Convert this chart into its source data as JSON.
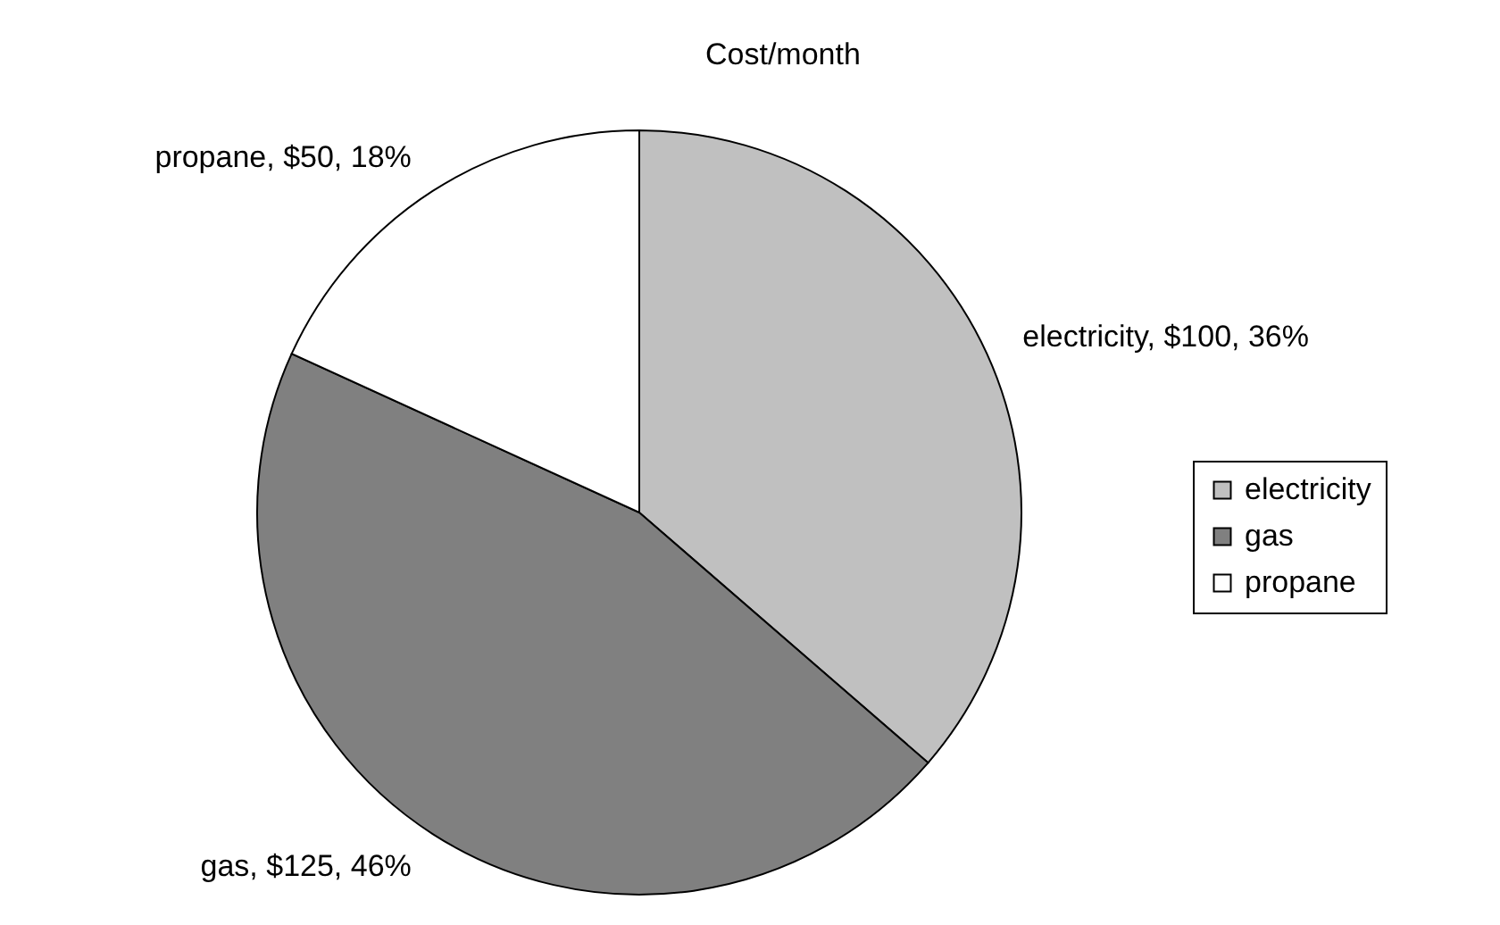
{
  "chart_data": {
    "type": "pie",
    "title": "Cost/month",
    "categories": [
      "electricity",
      "gas",
      "propane"
    ],
    "values": [
      100,
      125,
      50
    ],
    "colors": [
      "#c0c0c0",
      "#808080",
      "#ffffff"
    ],
    "value_labels": [
      "electricity, $100, 36%",
      "gas, $125, 46%",
      "propane, $50, 18%"
    ],
    "legend": "right"
  }
}
